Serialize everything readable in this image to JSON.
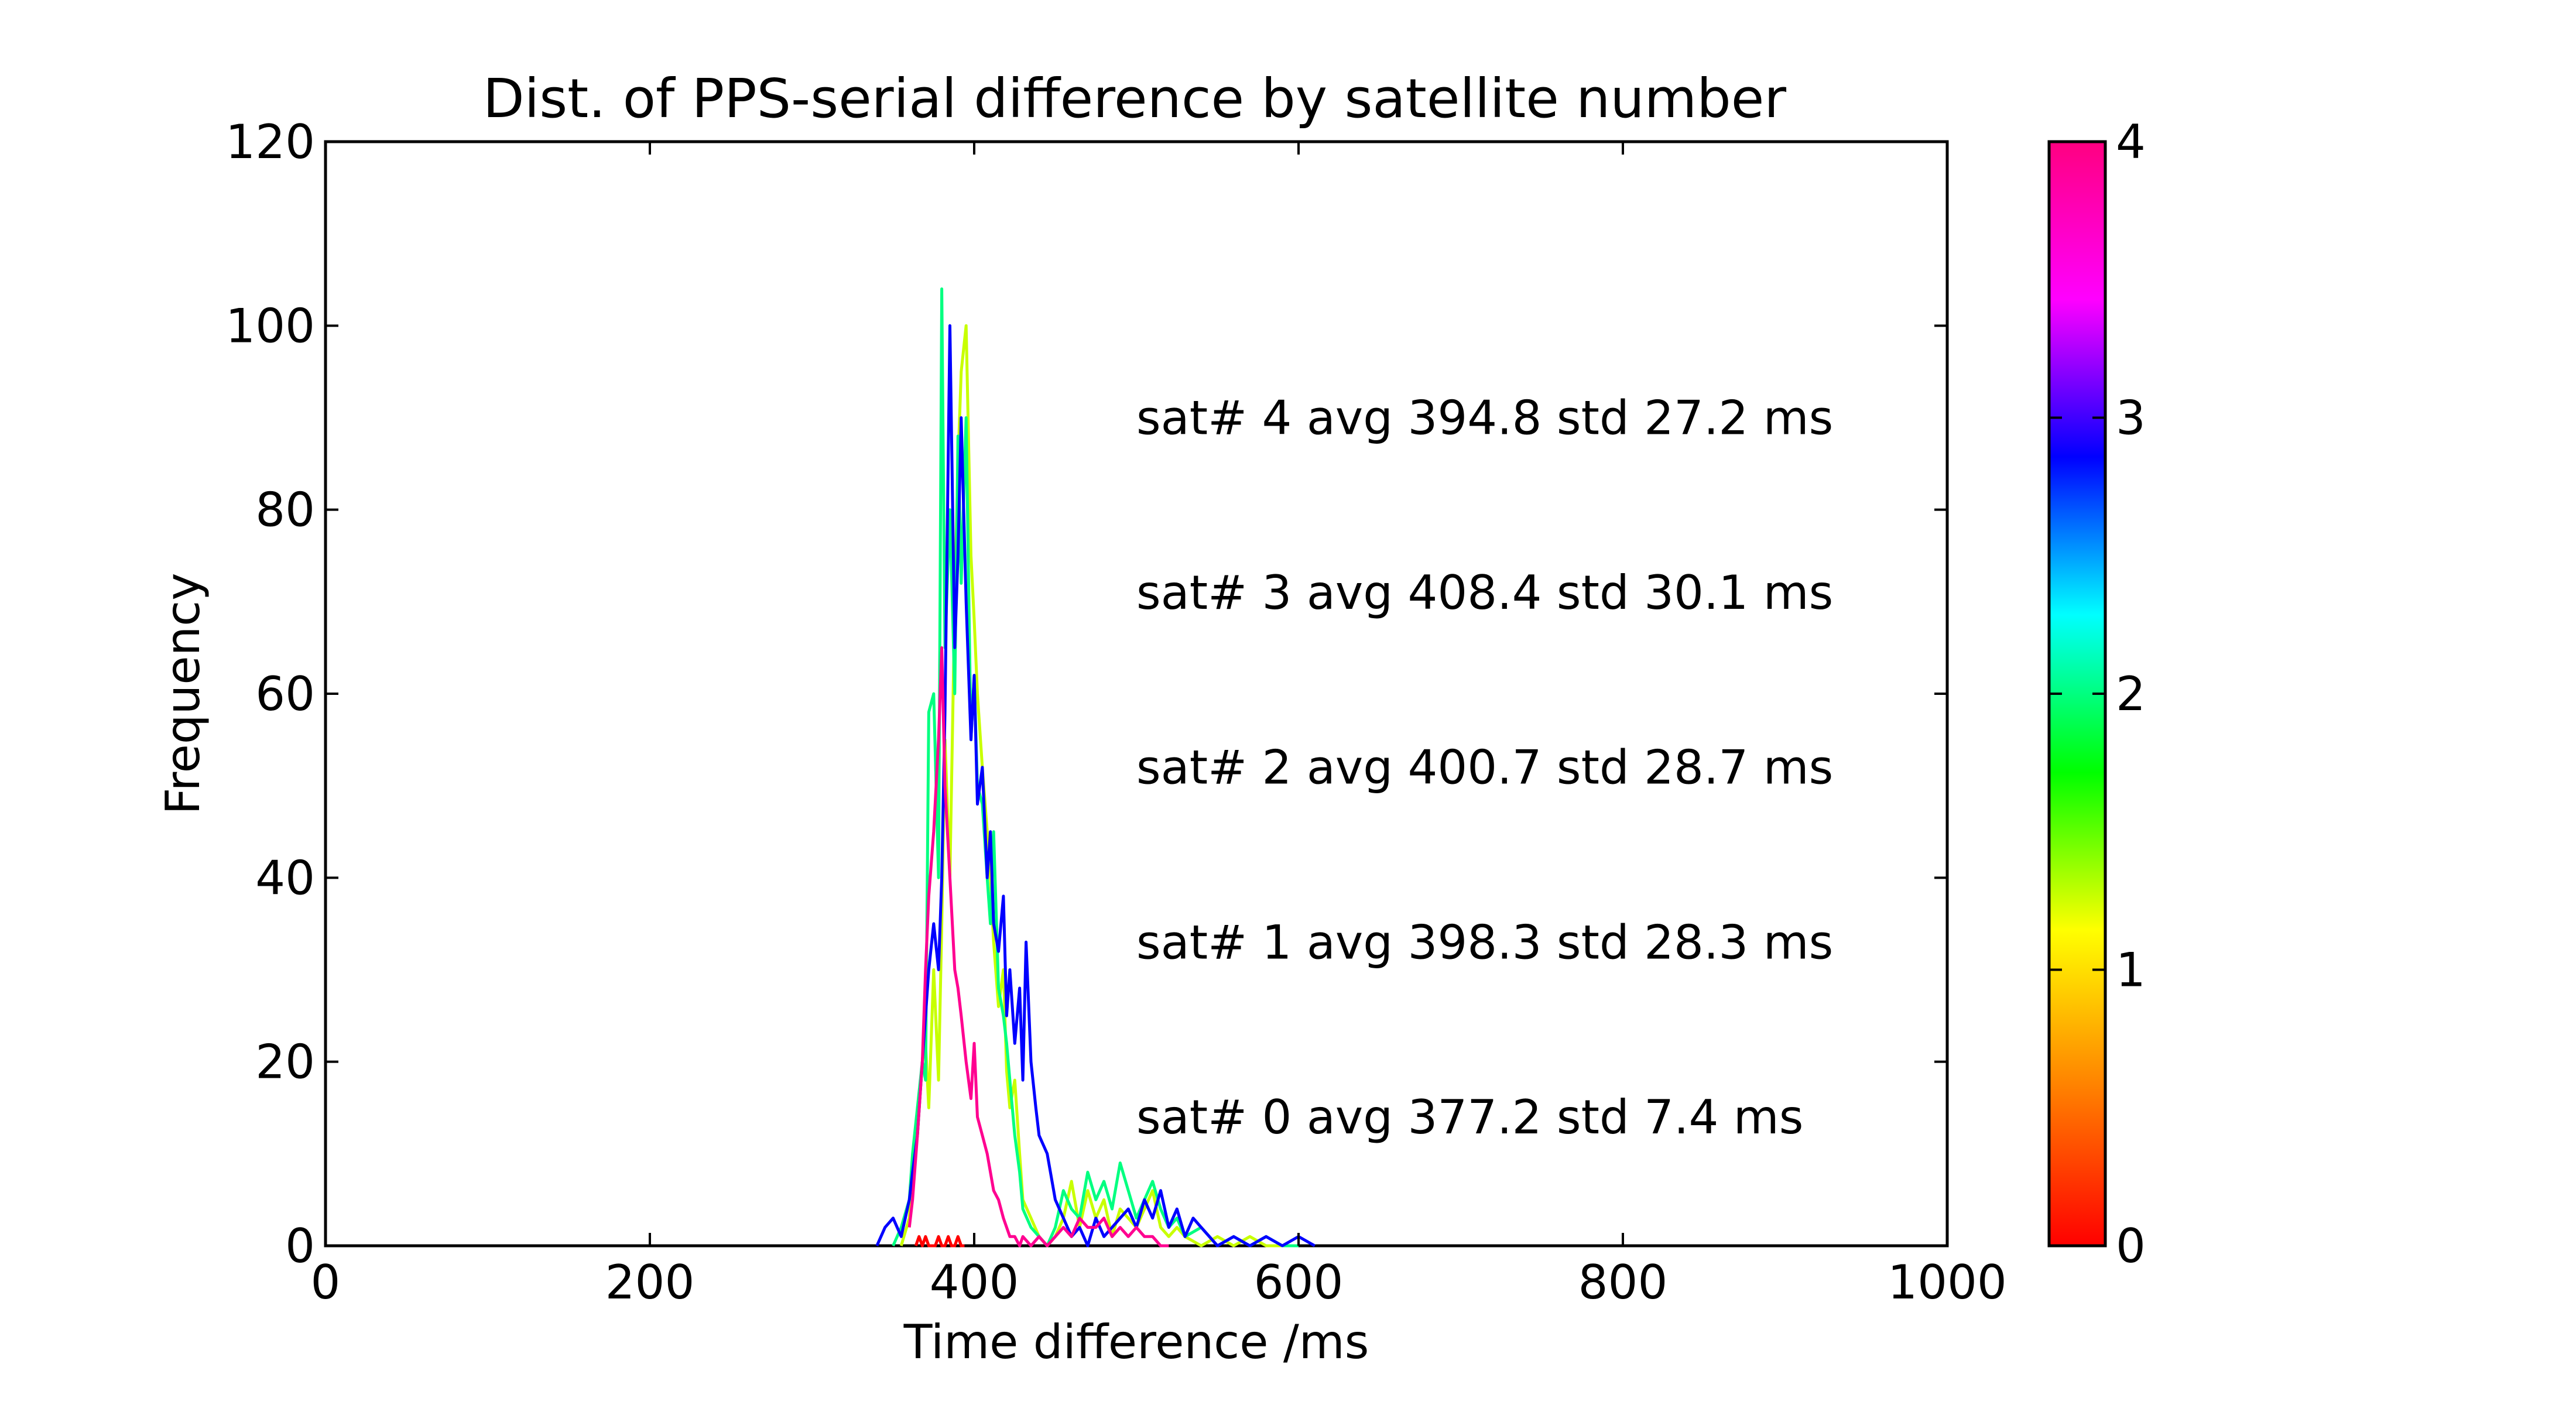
{
  "chart_data": {
    "type": "line",
    "title": "Dist. of PPS-serial difference by satellite number",
    "xlabel": "Time difference /ms",
    "ylabel": "Frequency",
    "xlim": [
      0,
      1000
    ],
    "ylim": [
      0,
      120
    ],
    "xticks": [
      0,
      200,
      400,
      600,
      800,
      1000
    ],
    "yticks": [
      0,
      20,
      40,
      60,
      80,
      100,
      120
    ],
    "grid": false,
    "colorbar": {
      "min": 0,
      "max": 4,
      "ticks": [
        0,
        1,
        2,
        3,
        4
      ],
      "colormap": "gist_rainbow",
      "colors": [
        "#ff0000",
        "#ff8000",
        "#ffff00",
        "#00ff00",
        "#00ffff",
        "#0000ff",
        "#ff00ff",
        "#ff0080"
      ]
    },
    "series": [
      {
        "sat": 0,
        "color": "#ff0000",
        "x": [
          364,
          366,
          368,
          370,
          372,
          374,
          376,
          378,
          380,
          382,
          384,
          386,
          388,
          390,
          392,
          394
        ],
        "y": [
          0,
          1,
          0,
          1,
          0,
          0,
          0,
          1,
          0,
          0,
          1,
          0,
          0,
          1,
          0,
          0
        ]
      },
      {
        "sat": 1,
        "color": "#c8ff00",
        "x": [
          355,
          360,
          362,
          365,
          368,
          370,
          372,
          375,
          378,
          380,
          382,
          385,
          388,
          390,
          392,
          395,
          398,
          400,
          402,
          405,
          408,
          410,
          412,
          415,
          418,
          420,
          422,
          425,
          428,
          430,
          435,
          440,
          445,
          450,
          455,
          460,
          465,
          470,
          475,
          480,
          485,
          490,
          495,
          500,
          505,
          510,
          515,
          520,
          525,
          530,
          540,
          550,
          560,
          570,
          580,
          590
        ],
        "y": [
          0,
          3,
          8,
          12,
          20,
          22,
          15,
          30,
          18,
          35,
          55,
          40,
          70,
          85,
          95,
          100,
          75,
          68,
          60,
          52,
          45,
          40,
          33,
          26,
          30,
          19,
          15,
          18,
          10,
          5,
          3,
          1,
          0,
          1,
          3,
          7,
          2,
          6,
          3,
          5,
          1,
          4,
          3,
          2,
          4,
          6,
          2,
          1,
          2,
          1,
          0,
          1,
          0,
          1,
          0,
          0
        ]
      },
      {
        "sat": 2,
        "color": "#00ff80",
        "x": [
          350,
          355,
          360,
          362,
          365,
          368,
          370,
          372,
          375,
          378,
          380,
          382,
          385,
          388,
          390,
          392,
          395,
          398,
          400,
          402,
          405,
          408,
          410,
          412,
          415,
          418,
          420,
          422,
          425,
          428,
          430,
          435,
          440,
          445,
          450,
          455,
          460,
          465,
          470,
          475,
          480,
          485,
          490,
          495,
          500,
          505,
          510,
          515,
          520,
          525,
          530,
          540,
          550,
          560,
          570,
          580,
          590,
          600
        ],
        "y": [
          0,
          2,
          5,
          10,
          15,
          20,
          18,
          58,
          60,
          40,
          104,
          65,
          80,
          60,
          88,
          72,
          90,
          55,
          62,
          50,
          48,
          40,
          35,
          45,
          28,
          25,
          22,
          18,
          12,
          8,
          4,
          2,
          1,
          0,
          2,
          6,
          4,
          3,
          8,
          5,
          7,
          4,
          9,
          6,
          3,
          5,
          7,
          4,
          2,
          3,
          1,
          2,
          0,
          1,
          0,
          1,
          0,
          0
        ]
      },
      {
        "sat": 3,
        "color": "#0000ff",
        "x": [
          340,
          345,
          350,
          355,
          360,
          362,
          365,
          368,
          370,
          372,
          375,
          378,
          380,
          382,
          385,
          388,
          390,
          392,
          395,
          398,
          400,
          402,
          405,
          408,
          410,
          412,
          415,
          418,
          420,
          422,
          425,
          428,
          430,
          432,
          435,
          438,
          440,
          445,
          450,
          455,
          460,
          465,
          470,
          475,
          480,
          485,
          490,
          495,
          500,
          505,
          510,
          515,
          520,
          525,
          530,
          535,
          540,
          545,
          550,
          560,
          570,
          580,
          590,
          600,
          610
        ],
        "y": [
          0,
          2,
          3,
          1,
          5,
          8,
          12,
          20,
          25,
          30,
          35,
          30,
          40,
          58,
          100,
          65,
          75,
          90,
          70,
          55,
          62,
          48,
          52,
          40,
          45,
          35,
          32,
          38,
          25,
          30,
          22,
          28,
          18,
          33,
          20,
          15,
          12,
          10,
          5,
          3,
          1,
          2,
          0,
          3,
          1,
          2,
          3,
          4,
          2,
          5,
          3,
          6,
          2,
          4,
          1,
          3,
          2,
          1,
          0,
          1,
          0,
          1,
          0,
          1,
          0
        ]
      },
      {
        "sat": 4,
        "color": "#ff0090",
        "x": [
          360,
          362,
          365,
          368,
          370,
          372,
          375,
          378,
          380,
          382,
          385,
          388,
          390,
          392,
          395,
          398,
          400,
          402,
          405,
          408,
          410,
          412,
          415,
          418,
          420,
          422,
          425,
          428,
          430,
          435,
          440,
          445,
          450,
          455,
          460,
          465,
          470,
          475,
          480,
          485,
          490,
          495,
          500,
          505,
          510,
          515,
          520
        ],
        "y": [
          2,
          5,
          12,
          20,
          30,
          38,
          45,
          55,
          65,
          50,
          40,
          30,
          28,
          25,
          20,
          16,
          22,
          14,
          12,
          10,
          8,
          6,
          5,
          3,
          2,
          1,
          1,
          0,
          1,
          0,
          1,
          0,
          1,
          2,
          1,
          3,
          2,
          2,
          3,
          1,
          2,
          1,
          2,
          1,
          1,
          0,
          0
        ]
      }
    ],
    "annotations": [
      {
        "text": "sat# 4 avg 394.8 std 27.2 ms",
        "x": 500,
        "y": 90
      },
      {
        "text": "sat# 3 avg 408.4 std 30.1 ms",
        "x": 500,
        "y": 71
      },
      {
        "text": "sat# 2 avg 400.7 std 28.7 ms",
        "x": 500,
        "y": 52
      },
      {
        "text": "sat# 1 avg 398.3 std 28.3 ms",
        "x": 500,
        "y": 33
      },
      {
        "text": "sat# 0 avg 377.2 std 7.4 ms",
        "x": 500,
        "y": 14
      }
    ]
  }
}
